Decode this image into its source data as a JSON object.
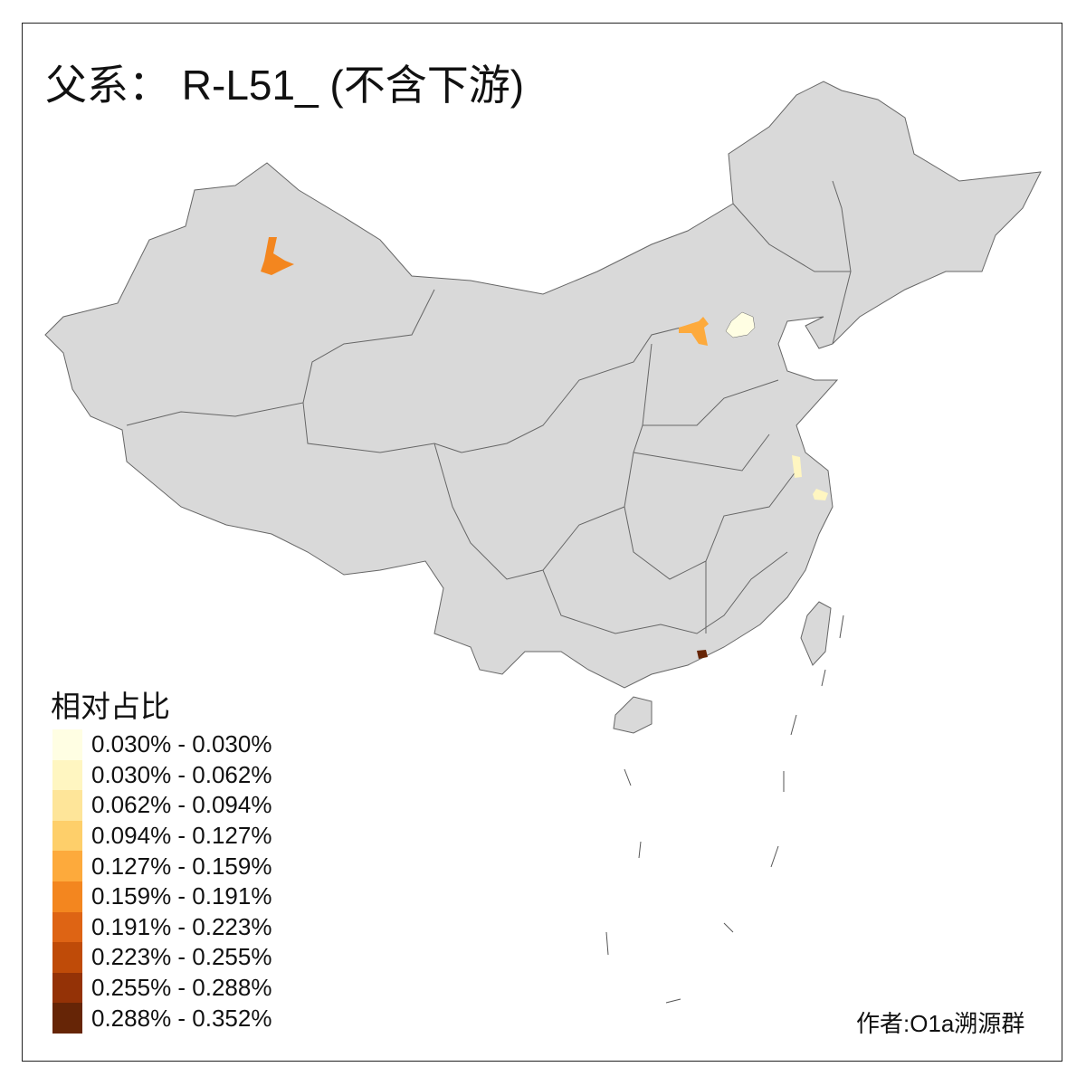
{
  "title": "父系： R-L51_ (不含下游)",
  "legend": {
    "title": "相对占比",
    "items": [
      {
        "label": "0.030% - 0.030%",
        "color": "#FFFEE3"
      },
      {
        "label": "0.030% - 0.062%",
        "color": "#FFF6C1"
      },
      {
        "label": "0.062% - 0.094%",
        "color": "#FEE599"
      },
      {
        "label": "0.094% - 0.127%",
        "color": "#FECF6A"
      },
      {
        "label": "0.127% - 0.159%",
        "color": "#FDAA3C"
      },
      {
        "label": "0.159% - 0.191%",
        "color": "#F3861F"
      },
      {
        "label": "0.191% - 0.223%",
        "color": "#DE6414"
      },
      {
        "label": "0.223% - 0.255%",
        "color": "#BF4B08"
      },
      {
        "label": "0.255% - 0.288%",
        "color": "#943206"
      },
      {
        "label": "0.288% - 0.352%",
        "color": "#662506"
      }
    ]
  },
  "map": {
    "base_color": "#D9D9D9",
    "border_color": "#666666",
    "highlighted_regions": [
      {
        "region": "xinjiang-north",
        "color": "#F3861F"
      },
      {
        "region": "inner-mongolia-hohhot",
        "color": "#FDAA3C"
      },
      {
        "region": "beijing",
        "color": "#FFFEE3"
      },
      {
        "region": "jiangsu",
        "color": "#FFF6C1"
      },
      {
        "region": "shanghai",
        "color": "#FFF6C1"
      },
      {
        "region": "guangdong",
        "color": "#662506"
      }
    ]
  },
  "credit": "作者:O1a溯源群"
}
